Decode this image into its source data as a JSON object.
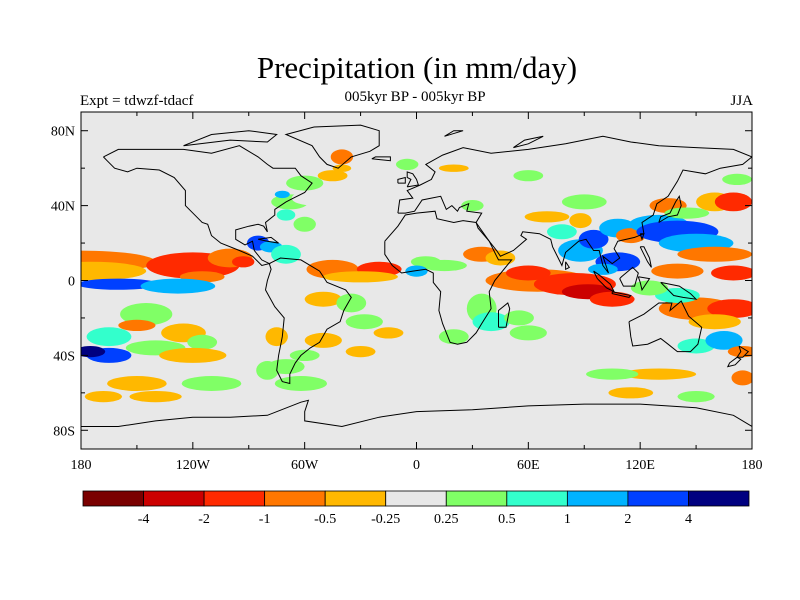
{
  "title": "Precipitation (in mm/day)",
  "subtitle": "005kyr BP - 005kyr BP",
  "left_label": "Expt = tdwzf-tdacf",
  "right_label": "JJA",
  "lon_ticks": [
    "180",
    "120W",
    "60W",
    "0",
    "60E",
    "120E",
    "180"
  ],
  "lat_ticks": [
    "80N",
    "40N",
    "0",
    "40S",
    "80S"
  ],
  "colorbar": {
    "colors": [
      "#7a0000",
      "#cc0000",
      "#ff2a00",
      "#ff7700",
      "#ffb800",
      "#e8e8e8",
      "#80ff66",
      "#33ffcc",
      "#00b3ff",
      "#0040ff",
      "#000080"
    ],
    "labels": [
      "-4",
      "-2",
      "-1",
      "-0.5",
      "-0.25",
      "0.25",
      "0.5",
      "1",
      "2",
      "4"
    ]
  },
  "map": {
    "background_color": "#e8e8e8",
    "coastline_color": "#000000"
  }
}
